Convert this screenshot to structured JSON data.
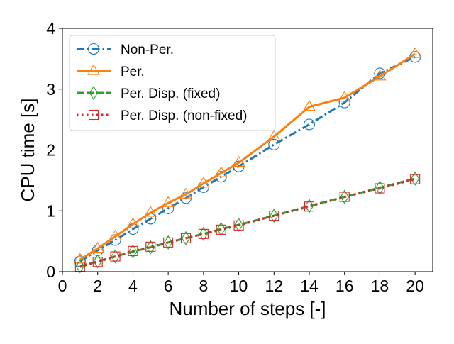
{
  "chart_data": {
    "type": "line",
    "title": "",
    "xlabel": "Number of steps [-]",
    "ylabel": "CPU time [s]",
    "xlim": [
      0,
      21
    ],
    "ylim": [
      0,
      4
    ],
    "xticks": [
      0,
      2,
      4,
      6,
      8,
      10,
      12,
      14,
      16,
      18,
      20
    ],
    "yticks": [
      0,
      1,
      2,
      3,
      4
    ],
    "grid": false,
    "legend_position": "top-left",
    "series": [
      {
        "name": "Non-Per.",
        "color": "#1f77b4",
        "line_style": "dashdot",
        "marker": "circle",
        "x": [
          1,
          2,
          3,
          4,
          5,
          6,
          7,
          8,
          9,
          10,
          12,
          14,
          16,
          18,
          20
        ],
        "y": [
          0.17,
          0.35,
          0.52,
          0.7,
          0.87,
          1.04,
          1.21,
          1.39,
          1.56,
          1.73,
          2.09,
          2.42,
          2.78,
          3.26,
          3.53
        ]
      },
      {
        "name": "Per.",
        "color": "#ff7f0e",
        "line_style": "solid",
        "marker": "triangle",
        "x": [
          1,
          2,
          3,
          4,
          5,
          6,
          7,
          8,
          9,
          10,
          12,
          14,
          16,
          18,
          20
        ],
        "y": [
          0.2,
          0.38,
          0.58,
          0.78,
          0.97,
          1.13,
          1.27,
          1.45,
          1.62,
          1.79,
          2.22,
          2.71,
          2.86,
          3.21,
          3.58
        ]
      },
      {
        "name": "Per. Disp. (fixed)",
        "color": "#2ca02c",
        "line_style": "dashed",
        "marker": "thin_diamond",
        "x": [
          1,
          2,
          3,
          4,
          5,
          6,
          7,
          8,
          9,
          10,
          12,
          14,
          16,
          18,
          20
        ],
        "y": [
          0.09,
          0.17,
          0.25,
          0.33,
          0.4,
          0.48,
          0.55,
          0.62,
          0.7,
          0.77,
          0.92,
          1.08,
          1.23,
          1.38,
          1.53
        ]
      },
      {
        "name": "Per. Disp. (non-fixed)",
        "color": "#d62728",
        "line_style": "dotted",
        "marker": "square",
        "x": [
          1,
          2,
          3,
          4,
          5,
          6,
          7,
          8,
          9,
          10,
          12,
          14,
          16,
          18,
          20
        ],
        "y": [
          0.08,
          0.16,
          0.25,
          0.34,
          0.41,
          0.48,
          0.55,
          0.62,
          0.69,
          0.76,
          0.92,
          1.07,
          1.23,
          1.37,
          1.52
        ]
      }
    ]
  }
}
